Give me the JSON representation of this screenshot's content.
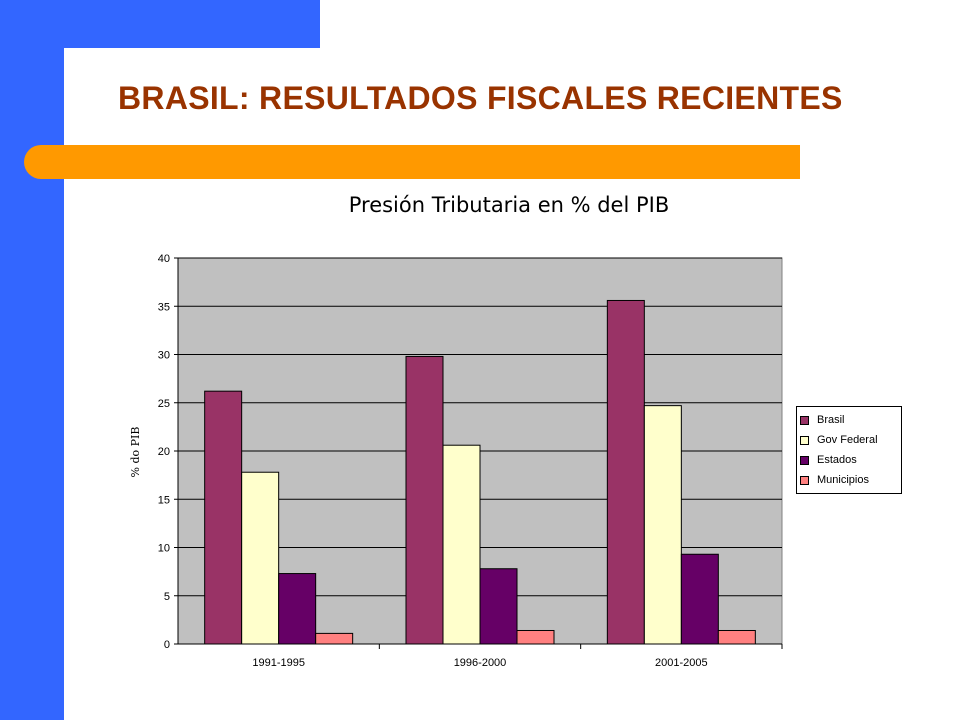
{
  "slide": {
    "title": "BRASIL: RESULTADOS FISCALES RECIENTES"
  },
  "chart_data": {
    "type": "bar",
    "title": "Presión Tributaria en % del PIB",
    "xlabel": "",
    "ylabel": "% do PIB",
    "categories": [
      "1991-1995",
      "1996-2000",
      "2001-2005"
    ],
    "ylim": [
      0,
      40
    ],
    "yticks": [
      0,
      5,
      10,
      15,
      20,
      25,
      30,
      35,
      40
    ],
    "grid": true,
    "legend_position": "right",
    "plot_background": "#c0c0c0",
    "series": [
      {
        "name": "Brasil",
        "color": "#993366",
        "values": [
          26.2,
          29.8,
          35.6
        ]
      },
      {
        "name": "Gov Federal",
        "color": "#ffffcc",
        "values": [
          17.8,
          20.6,
          24.7
        ]
      },
      {
        "name": "Estados",
        "color": "#660066",
        "values": [
          7.3,
          7.8,
          9.3
        ]
      },
      {
        "name": "Municipios",
        "color": "#ff8080",
        "values": [
          1.1,
          1.4,
          1.4
        ]
      }
    ]
  }
}
